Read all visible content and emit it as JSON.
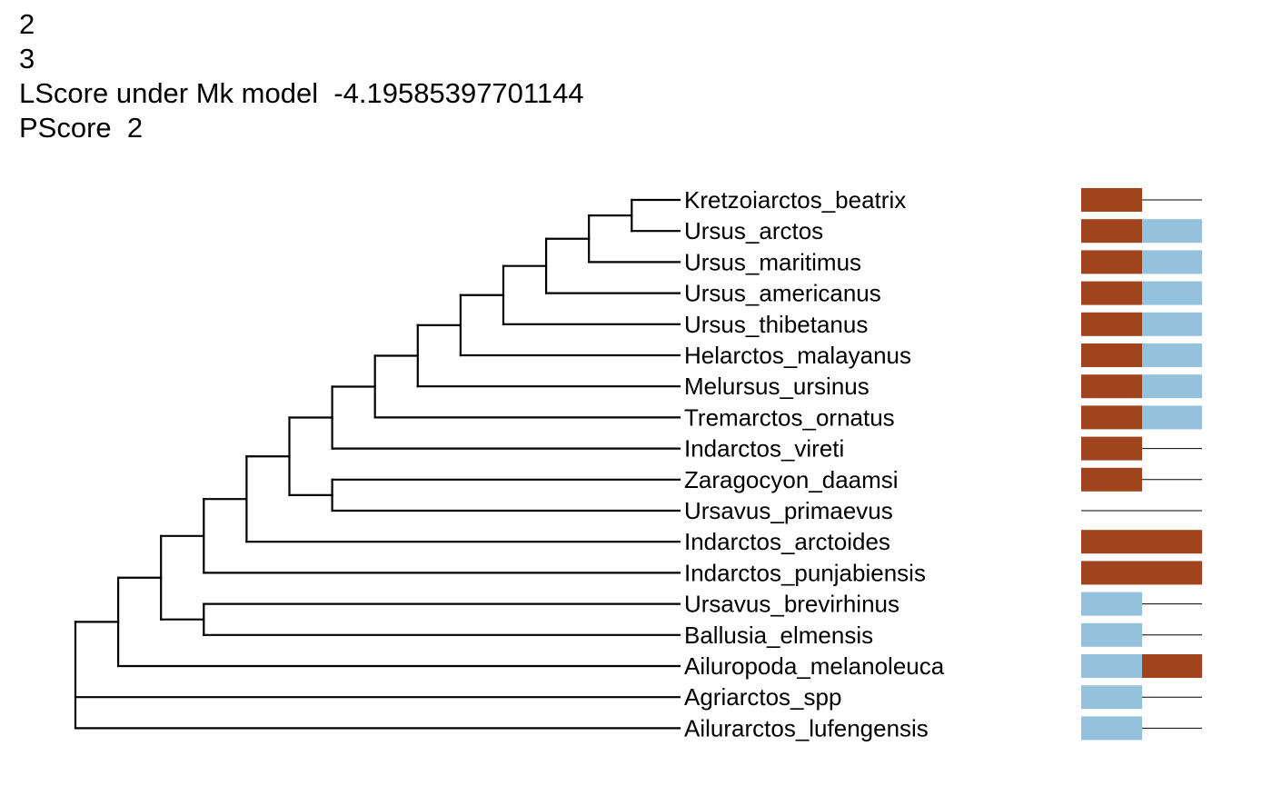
{
  "header": {
    "line1": "2",
    "line2": "3",
    "lscore": "LScore under Mk model  -4.19585397701144",
    "pscore": "PScore  2"
  },
  "colors": {
    "state_a": "#a0441e",
    "state_b": "#94c2dc",
    "branch": "#000000",
    "empty": "#000000"
  },
  "taxa": [
    {
      "name": "Kretzoiarctos_beatrix",
      "cells": [
        "a",
        null
      ]
    },
    {
      "name": "Ursus_arctos",
      "cells": [
        "a",
        "b"
      ]
    },
    {
      "name": "Ursus_maritimus",
      "cells": [
        "a",
        "b"
      ]
    },
    {
      "name": "Ursus_americanus",
      "cells": [
        "a",
        "b"
      ]
    },
    {
      "name": "Ursus_thibetanus",
      "cells": [
        "a",
        "b"
      ]
    },
    {
      "name": "Helarctos_malayanus",
      "cells": [
        "a",
        "b"
      ]
    },
    {
      "name": "Melursus_ursinus",
      "cells": [
        "a",
        "b"
      ]
    },
    {
      "name": "Tremarctos_ornatus",
      "cells": [
        "a",
        "b"
      ]
    },
    {
      "name": "Indarctos_vireti",
      "cells": [
        "a",
        null
      ]
    },
    {
      "name": "Zaragocyon_daamsi",
      "cells": [
        "a",
        null
      ]
    },
    {
      "name": "Ursavus_primaevus",
      "cells": [
        null,
        null
      ]
    },
    {
      "name": "Indarctos_arctoides",
      "cells": [
        "a",
        "a"
      ]
    },
    {
      "name": "Indarctos_punjabiensis",
      "cells": [
        "a",
        "a"
      ]
    },
    {
      "name": "Ursavus_brevirhinus",
      "cells": [
        "b",
        null
      ]
    },
    {
      "name": "Ballusia_elmensis",
      "cells": [
        "b",
        null
      ]
    },
    {
      "name": "Ailuropoda_melanoleuca",
      "cells": [
        "b",
        "a"
      ]
    },
    {
      "name": "Agriarctos_spp",
      "cells": [
        "b",
        null
      ]
    },
    {
      "name": "Ailurarctos_lufengensis",
      "cells": [
        "b",
        null
      ]
    }
  ],
  "tree": "((((((((((((((Kretzoiarctos_beatrix,Ursus_arctos),Ursus_maritimus),Ursus_americanus),Ursus_thibetanus),Helarctos_malayanus),Melursus_ursinus),Tremarctos_ornatus),Indarctos_vireti),(Zaragocyon_daamsi,Ursavus_primaevus)),Indarctos_arctoides),Indarctos_punjabiensis),(Ursavus_brevirhinus,Ballusia_elmensis)),Ailuropoda_melanoleuca),Agriarctos_spp,Ailurarctos_lufengensis)"
}
